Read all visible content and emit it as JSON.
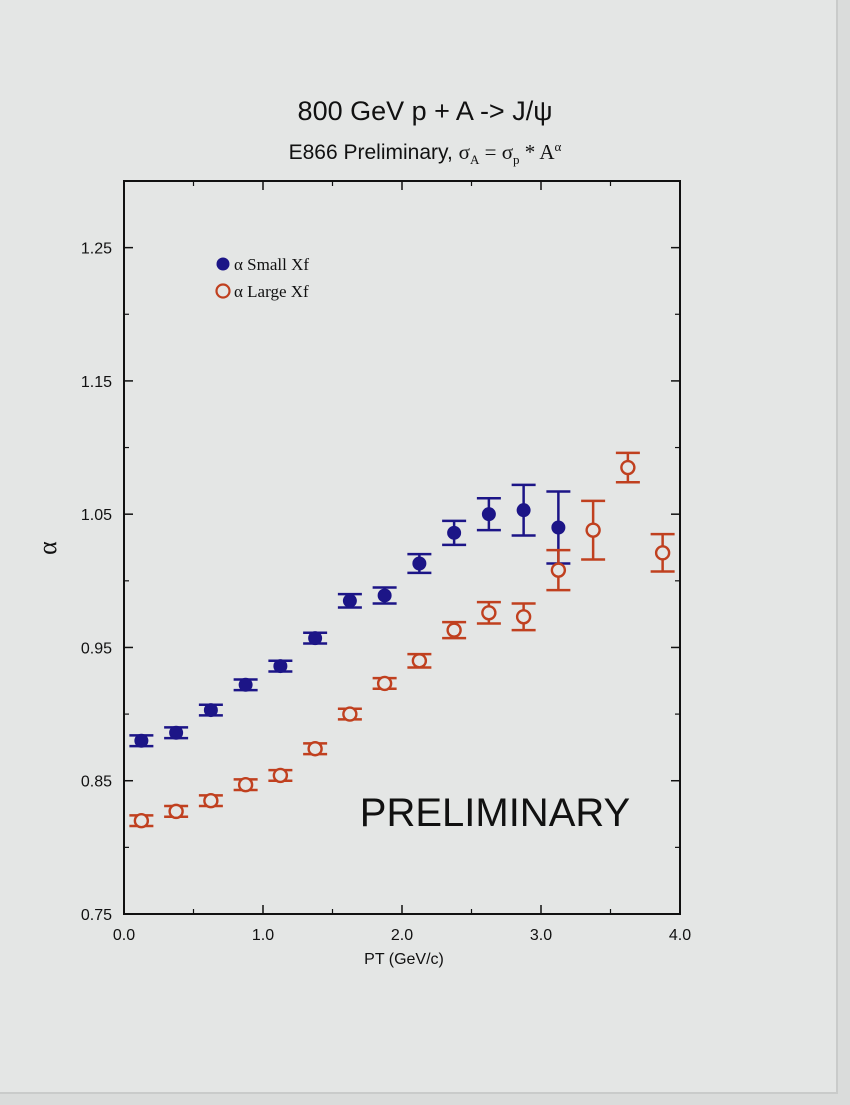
{
  "chart_data": {
    "type": "scatter",
    "title": "800 GeV p + A -> J/ψ",
    "subtitle": {
      "prefix": "E866 Preliminary, ",
      "sigma": "σ",
      "sub_a": "A",
      "equals": " = ",
      "sub_p": "p",
      "times_a": " * A",
      "sup_alpha": "α"
    },
    "xlabel": "PT (GeV/c)",
    "ylabel": "α",
    "xlim": [
      0.0,
      4.0
    ],
    "ylim": [
      0.75,
      1.3
    ],
    "x_ticks": [
      "0.0",
      "1.0",
      "2.0",
      "3.0",
      "4.0"
    ],
    "y_ticks": [
      "0.75",
      "0.85",
      "0.95",
      "1.05",
      "1.15",
      "1.25"
    ],
    "annotation": "PRELIMINARY",
    "legend_position": "top-left",
    "series": [
      {
        "name": "α Small Xf",
        "color": "#1c1587",
        "marker": "filled-circle",
        "x": [
          0.125,
          0.375,
          0.625,
          0.875,
          1.125,
          1.375,
          1.625,
          1.875,
          2.125,
          2.375,
          2.625,
          2.875,
          3.125
        ],
        "y": [
          0.88,
          0.886,
          0.903,
          0.922,
          0.936,
          0.957,
          0.985,
          0.989,
          1.013,
          1.036,
          1.05,
          1.053,
          1.04
        ],
        "err": [
          0.004,
          0.004,
          0.004,
          0.004,
          0.004,
          0.004,
          0.005,
          0.006,
          0.007,
          0.009,
          0.012,
          0.019,
          0.027
        ]
      },
      {
        "name": "α Large Xf",
        "color": "#c0401f",
        "marker": "open-circle",
        "x": [
          0.125,
          0.375,
          0.625,
          0.875,
          1.125,
          1.375,
          1.625,
          1.875,
          2.125,
          2.375,
          2.625,
          2.875,
          3.125,
          3.375,
          3.625,
          3.875
        ],
        "y": [
          0.82,
          0.827,
          0.835,
          0.847,
          0.854,
          0.874,
          0.9,
          0.923,
          0.94,
          0.963,
          0.976,
          0.973,
          1.008,
          1.038,
          1.085,
          1.021
        ],
        "err": [
          0.004,
          0.004,
          0.004,
          0.004,
          0.004,
          0.004,
          0.004,
          0.004,
          0.005,
          0.006,
          0.008,
          0.01,
          0.015,
          0.022,
          0.011,
          0.014
        ]
      }
    ]
  }
}
